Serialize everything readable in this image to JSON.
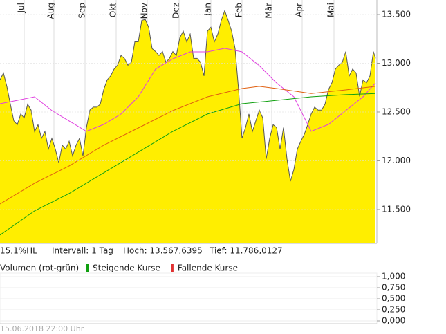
{
  "chart_data": {
    "type": "area",
    "xlim": [
      0,
      272.5
    ],
    "xticks": [
      {
        "value": 17.5,
        "label": "Jul"
      },
      {
        "value": 39,
        "label": "Aug"
      },
      {
        "value": 61.5,
        "label": "Sep"
      },
      {
        "value": 84,
        "label": "Okt"
      },
      {
        "value": 106.5,
        "label": "Nov"
      },
      {
        "value": 129.5,
        "label": "Dez"
      },
      {
        "value": 152.5,
        "label": "Jan"
      },
      {
        "value": 175,
        "label": "Feb"
      },
      {
        "value": 196.5,
        "label": "Mär"
      },
      {
        "value": 218.5,
        "label": "Apr"
      },
      {
        "value": 241.5,
        "label": "Mai"
      }
    ],
    "ylim": [
      11.152,
      13.649
    ],
    "yticks": [
      {
        "value": 11.5,
        "label": "11.500"
      },
      {
        "value": 12,
        "label": "12.000"
      },
      {
        "value": 12.5,
        "label": "12.500"
      },
      {
        "value": 13,
        "label": "13.000"
      },
      {
        "value": 13.5,
        "label": "13.500"
      }
    ],
    "grid": true,
    "series": [
      {
        "color": "#555555",
        "fill": "#ffee00",
        "x": [
          0,
          2.5,
          5,
          7.5,
          10,
          12.5,
          15,
          17.5,
          20,
          22.5,
          25,
          27.5,
          30,
          32.5,
          35,
          37.5,
          40,
          42.5,
          45,
          47.5,
          50,
          52.5,
          55,
          57.5,
          60,
          62.5,
          65,
          67.5,
          70,
          72.5,
          75,
          77.5,
          80,
          82.5,
          85,
          87.5,
          90,
          92.5,
          95,
          97.5,
          100,
          102.5,
          105,
          107.5,
          110,
          112.5,
          115,
          117.5,
          120,
          122.5,
          125,
          127.5,
          130,
          132.5,
          135,
          137.5,
          140,
          142.5,
          145,
          147.5,
          150,
          152.5,
          155,
          157.5,
          160,
          162.5,
          165,
          167.5,
          170,
          172.5,
          175,
          177.5,
          180,
          182.5,
          185,
          187.5,
          190,
          192.5,
          195,
          197.5,
          200,
          202.5,
          205,
          207.5,
          210,
          212.5,
          215,
          217.5,
          220,
          222.5,
          225,
          227.5,
          230,
          232.5,
          235,
          237.5,
          240,
          242.5,
          245,
          247.5,
          250,
          252.5,
          255,
          257.5,
          260,
          262.5,
          265,
          267.5,
          270,
          271.5
        ],
        "values": [
          12.83,
          12.9,
          12.76,
          12.58,
          12.41,
          12.37,
          12.48,
          12.44,
          12.58,
          12.52,
          12.3,
          12.37,
          12.23,
          12.3,
          12.12,
          12.23,
          12.12,
          11.98,
          12.16,
          12.12,
          12.2,
          12.05,
          12.16,
          12.23,
          12.05,
          12.34,
          12.52,
          12.55,
          12.55,
          12.58,
          12.73,
          12.83,
          12.87,
          12.94,
          12.98,
          13.08,
          13.05,
          12.98,
          13.01,
          13.22,
          13.22,
          13.44,
          13.45,
          13.37,
          13.15,
          13.12,
          13.08,
          13.12,
          13.01,
          13.05,
          13.12,
          13.08,
          13.26,
          13.33,
          13.22,
          13.3,
          13.05,
          13.05,
          13.01,
          12.87,
          13.33,
          13.37,
          13.22,
          13.3,
          13.44,
          13.54,
          13.44,
          13.33,
          13.15,
          12.73,
          12.23,
          12.34,
          12.48,
          12.3,
          12.41,
          12.52,
          12.44,
          12.02,
          12.23,
          12.37,
          12.34,
          12.12,
          12.34,
          12.02,
          11.79,
          11.91,
          12.12,
          12.2,
          12.27,
          12.37,
          12.48,
          12.55,
          12.52,
          12.52,
          12.58,
          12.73,
          12.8,
          12.94,
          12.98,
          13.01,
          13.12,
          12.87,
          12.94,
          12.9,
          12.66,
          12.83,
          12.8,
          12.87,
          13.12,
          13.05
        ]
      },
      {
        "color": "#e040e0",
        "x": [
          0,
          12.5,
          25,
          37.5,
          50,
          62.5,
          75,
          87.5,
          100,
          112.5,
          125,
          137.5,
          150,
          162.5,
          175,
          187.5,
          200,
          212.5,
          225,
          237.5,
          250,
          262.5,
          271.5
        ],
        "values": [
          12.585,
          12.62,
          12.656,
          12.515,
          12.408,
          12.302,
          12.373,
          12.479,
          12.656,
          12.94,
          13.046,
          13.117,
          13.117,
          13.153,
          13.117,
          12.975,
          12.798,
          12.656,
          12.302,
          12.373,
          12.515,
          12.656,
          12.798
        ]
      },
      {
        "color": "#e06010",
        "x": [
          0,
          25,
          50,
          75,
          100,
          125,
          150,
          175,
          187.5,
          200,
          225,
          250,
          271.5
        ],
        "values": [
          11.557,
          11.77,
          11.947,
          12.16,
          12.337,
          12.515,
          12.656,
          12.741,
          12.763,
          12.741,
          12.69,
          12.727,
          12.763
        ]
      },
      {
        "color": "#10a010",
        "x": [
          0,
          25,
          50,
          75,
          100,
          125,
          150,
          175,
          200,
          225,
          250,
          271.5
        ],
        "values": [
          11.238,
          11.486,
          11.664,
          11.876,
          12.089,
          12.302,
          12.479,
          12.585,
          12.62,
          12.656,
          12.678,
          12.69
        ]
      }
    ],
    "info": [
      "15,1%HL",
      "Intervall: 1 Tag",
      "Hoch: 13.567,6395",
      "Tief: 11.786,0127"
    ],
    "legend": [
      {
        "name": "Volumen (rot-grün)"
      },
      {
        "name": "Steigende Kurse",
        "color": "#10a010"
      },
      {
        "name": "Fallende Kurse",
        "color": "#e03030"
      }
    ],
    "volume_axis": {
      "ylim": [
        0,
        1
      ],
      "yticks": [
        {
          "value": 0,
          "label": "0,000"
        },
        {
          "value": 0.25,
          "label": "0,250"
        },
        {
          "value": 0.5,
          "label": "0,500"
        },
        {
          "value": 0.75,
          "label": "0,750"
        },
        {
          "value": 1,
          "label": "1,000"
        }
      ]
    },
    "footer": "15.06.2018 22:00 Uhr"
  }
}
